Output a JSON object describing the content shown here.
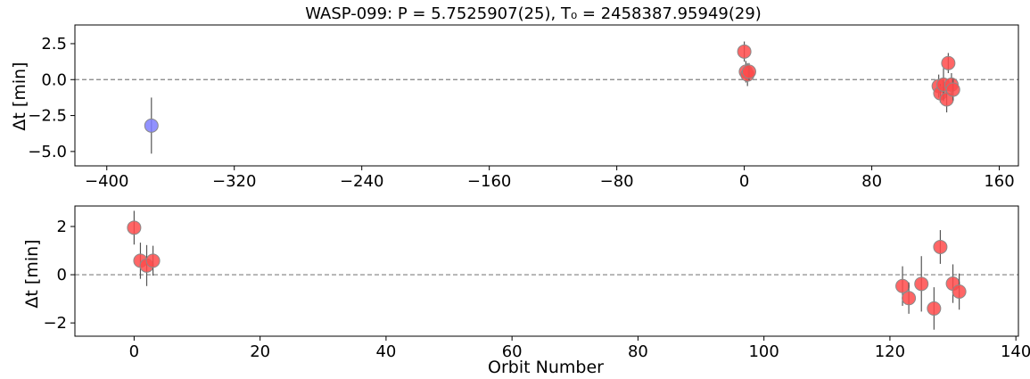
{
  "title": "WASP-099: P = 5.7525907(25), T₀ = 2458387.95949(29)",
  "chart_data": [
    {
      "type": "scatter",
      "panel": "top",
      "ylabel": "Δt [min]",
      "xlabel": "",
      "xlim": [
        -420,
        172
      ],
      "ylim": [
        -6.0,
        3.8
      ],
      "xticks": [
        -400,
        -320,
        -240,
        -160,
        -80,
        0,
        80,
        160
      ],
      "yticks": [
        2.5,
        0.0,
        -2.5,
        -5.0
      ],
      "ytick_labels": [
        "2.5",
        "0.0",
        "−2.5",
        "−5.0"
      ],
      "zero_line": true,
      "colors": {
        "blue": "#7f7fff",
        "red": "#ff4b4b"
      },
      "points": [
        {
          "x": -372,
          "y": -3.2,
          "err": 1.95,
          "color": "blue"
        },
        {
          "x": 0,
          "y": 1.95,
          "err": 0.7,
          "color": "red"
        },
        {
          "x": 1,
          "y": 0.55,
          "err": 0.75,
          "color": "red"
        },
        {
          "x": 2,
          "y": 0.35,
          "err": 0.8,
          "color": "red"
        },
        {
          "x": 3,
          "y": 0.55,
          "err": 0.6,
          "color": "red"
        },
        {
          "x": 122,
          "y": -0.45,
          "err": 0.8,
          "color": "red"
        },
        {
          "x": 123,
          "y": -0.95,
          "err": 0.65,
          "color": "red"
        },
        {
          "x": 125,
          "y": -0.35,
          "err": 1.15,
          "color": "red"
        },
        {
          "x": 127,
          "y": -1.38,
          "err": 0.9,
          "color": "red"
        },
        {
          "x": 128,
          "y": 1.15,
          "err": 0.7,
          "color": "red"
        },
        {
          "x": 130,
          "y": -0.35,
          "err": 0.8,
          "color": "red"
        },
        {
          "x": 131,
          "y": -0.7,
          "err": 0.75,
          "color": "red"
        }
      ]
    },
    {
      "type": "scatter",
      "panel": "bottom",
      "ylabel": "Δt [min]",
      "xlabel": "Orbit Number",
      "xlim": [
        -9.4,
        140.4
      ],
      "ylim": [
        -2.55,
        2.85
      ],
      "xticks": [
        0,
        20,
        40,
        60,
        80,
        100,
        120,
        140
      ],
      "yticks": [
        2,
        0,
        -2
      ],
      "ytick_labels": [
        "2",
        "0",
        "−2"
      ],
      "zero_line": true,
      "colors": {
        "red": "#ff4b4b"
      },
      "points": [
        {
          "x": 0,
          "y": 1.95,
          "err": 0.7,
          "color": "red"
        },
        {
          "x": 1,
          "y": 0.58,
          "err": 0.75,
          "color": "red"
        },
        {
          "x": 2,
          "y": 0.38,
          "err": 0.85,
          "color": "red"
        },
        {
          "x": 3,
          "y": 0.58,
          "err": 0.62,
          "color": "red"
        },
        {
          "x": 122,
          "y": -0.47,
          "err": 0.82,
          "color": "red"
        },
        {
          "x": 123,
          "y": -0.97,
          "err": 0.65,
          "color": "red"
        },
        {
          "x": 125,
          "y": -0.38,
          "err": 1.15,
          "color": "red"
        },
        {
          "x": 127,
          "y": -1.4,
          "err": 0.88,
          "color": "red"
        },
        {
          "x": 128,
          "y": 1.15,
          "err": 0.7,
          "color": "red"
        },
        {
          "x": 130,
          "y": -0.37,
          "err": 0.8,
          "color": "red"
        },
        {
          "x": 131,
          "y": -0.7,
          "err": 0.75,
          "color": "red"
        }
      ]
    }
  ]
}
